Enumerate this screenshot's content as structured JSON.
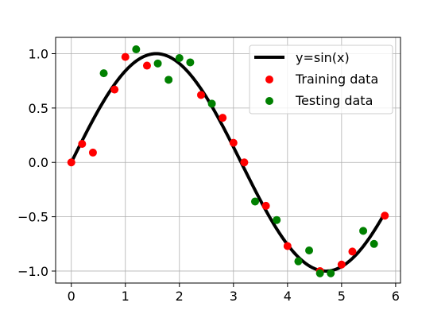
{
  "chart_data": {
    "type": "scatter",
    "title": "",
    "xlabel": "",
    "ylabel": "",
    "xlim": [
      -0.29,
      6.09
    ],
    "ylim": [
      -1.11,
      1.15
    ],
    "xticks": [
      0,
      1,
      2,
      3,
      4,
      5,
      6
    ],
    "yticks": [
      -1.0,
      -0.5,
      0.0,
      0.5,
      1.0
    ],
    "xtick_labels": [
      "0",
      "1",
      "2",
      "3",
      "4",
      "5",
      "6"
    ],
    "ytick_labels": [
      "−1.0",
      "−0.5",
      "0.0",
      "0.5",
      "1.0"
    ],
    "grid": true,
    "legend_position": "top-right",
    "line": {
      "name": "y=sin(x)",
      "color": "#000000",
      "x_range": [
        0,
        5.8
      ]
    },
    "series": [
      {
        "name": "Training data",
        "color": "#ff0000",
        "points": [
          [
            0.0,
            0.0
          ],
          [
            0.2,
            0.17
          ],
          [
            0.4,
            0.09
          ],
          [
            0.8,
            0.67
          ],
          [
            1.0,
            0.97
          ],
          [
            1.4,
            0.89
          ],
          [
            2.4,
            0.62
          ],
          [
            2.8,
            0.41
          ],
          [
            3.0,
            0.18
          ],
          [
            3.2,
            0.0
          ],
          [
            3.6,
            -0.4
          ],
          [
            4.0,
            -0.77
          ],
          [
            4.6,
            -1.0
          ],
          [
            5.0,
            -0.94
          ],
          [
            5.2,
            -0.82
          ],
          [
            5.8,
            -0.49
          ]
        ]
      },
      {
        "name": "Testing data",
        "color": "#008000",
        "points": [
          [
            0.6,
            0.82
          ],
          [
            1.2,
            1.04
          ],
          [
            1.6,
            0.91
          ],
          [
            1.8,
            0.76
          ],
          [
            2.0,
            0.96
          ],
          [
            2.2,
            0.92
          ],
          [
            2.6,
            0.54
          ],
          [
            3.4,
            -0.36
          ],
          [
            3.8,
            -0.53
          ],
          [
            4.2,
            -0.91
          ],
          [
            4.4,
            -0.81
          ],
          [
            4.6,
            -1.02
          ],
          [
            4.8,
            -1.02
          ],
          [
            5.4,
            -0.63
          ],
          [
            5.6,
            -0.75
          ]
        ]
      }
    ]
  }
}
